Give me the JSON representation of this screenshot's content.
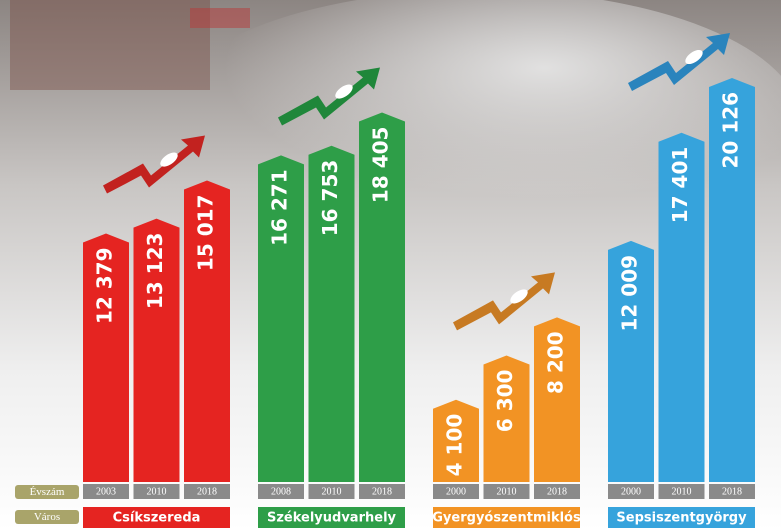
{
  "chart_data": {
    "type": "bar",
    "year_label": "Évszám",
    "city_label": "Város",
    "groups": [
      {
        "city": "Csíkszereda",
        "color": "#e52421",
        "arrow_color": "#c2221f",
        "years": [
          "2003",
          "2010",
          "2018"
        ],
        "values": [
          12379,
          13123,
          15017
        ],
        "value_labels": [
          "12 379",
          "13 123",
          "15 017"
        ]
      },
      {
        "city": "Székelyudvarhely",
        "color": "#2e9e48",
        "arrow_color": "#1f873a",
        "years": [
          "2008",
          "2010",
          "2018"
        ],
        "values": [
          16271,
          16753,
          18405
        ],
        "value_labels": [
          "16 271",
          "16 753",
          "18 405"
        ]
      },
      {
        "city": "Gyergyószentmiklós",
        "color": "#f29324",
        "arrow_color": "#c77a22",
        "years": [
          "2000",
          "2010",
          "2018"
        ],
        "values": [
          4100,
          6300,
          8200
        ],
        "value_labels": [
          "4 100",
          "6 300",
          "8 200"
        ]
      },
      {
        "city": "Sepsiszentgyörgy",
        "color": "#36a3dc",
        "arrow_color": "#2a84bd",
        "years": [
          "2000",
          "2010",
          "2018"
        ],
        "values": [
          12009,
          17401,
          20126
        ],
        "value_labels": [
          "12 009",
          "17 401",
          "20 126"
        ]
      }
    ]
  }
}
